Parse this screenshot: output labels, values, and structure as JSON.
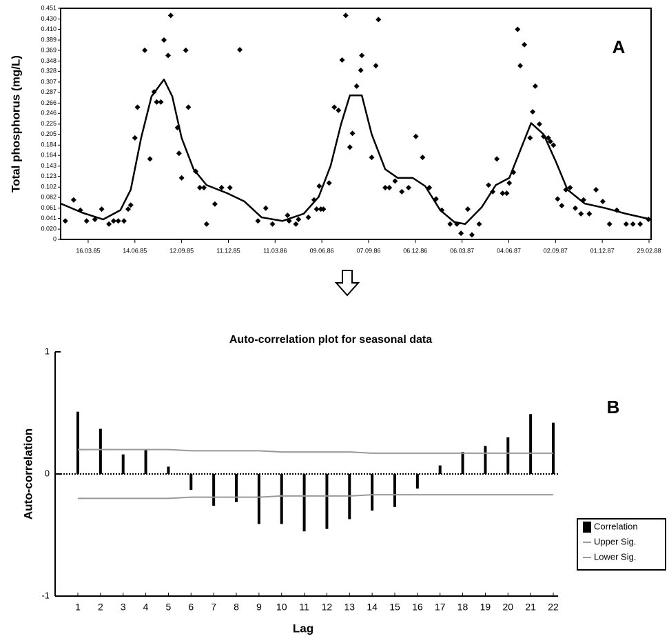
{
  "chart_data": [
    {
      "type": "scatter",
      "ylabel": "Total phosphorus (mg/L)",
      "annotation": "A",
      "ylim": [
        0,
        0.451
      ],
      "yticks": [
        0,
        {
          "value": 0.02,
          "label": "0.020"
        },
        0.041,
        0.061,
        0.082,
        0.102,
        0.123,
        0.143,
        0.164,
        0.184,
        0.205,
        0.225,
        0.246,
        0.266,
        0.287,
        0.307,
        0.328,
        0.348,
        0.369,
        0.389,
        {
          "value": 0.41,
          "label": "0.410"
        },
        {
          "value": 0.43,
          "label": "0.430"
        },
        0.451
      ],
      "xlim": [
        "1985-01-22",
        "1988-03-04"
      ],
      "xticks": [
        {
          "value": "1985-03-16",
          "label": "16.03.85"
        },
        {
          "value": "1985-06-14",
          "label": "14.06.85"
        },
        {
          "value": "1985-09-12",
          "label": "12.09.85"
        },
        {
          "value": "1985-12-11",
          "label": "11.12.85"
        },
        {
          "value": "1986-03-11",
          "label": "11.03.86"
        },
        {
          "value": "1986-06-09",
          "label": "09.06.86"
        },
        {
          "value": "1986-09-07",
          "label": "07.09.86"
        },
        {
          "value": "1986-12-06",
          "label": "06.12.86"
        },
        {
          "value": "1987-03-06",
          "label": "06.03.87"
        },
        {
          "value": "1987-06-04",
          "label": "04.06.87"
        },
        {
          "value": "1987-09-02",
          "label": "02.09.87"
        },
        {
          "value": "1987-12-01",
          "label": "01.12.87"
        },
        {
          "value": "1988-02-29",
          "label": "29.02.88"
        }
      ],
      "series": [
        {
          "color": "#000000",
          "x": [
            "1985-01-31",
            "1985-02-16",
            "1985-03-01",
            "1985-03-13",
            "1985-03-29",
            "1985-04-11",
            "1985-04-25",
            "1985-05-04",
            "1985-05-13",
            "1985-05-24",
            "1985-06-01",
            "1985-06-06",
            "1985-06-14",
            "1985-06-19",
            "1985-07-03",
            "1985-07-13",
            "1985-07-21",
            "1985-07-26",
            "1985-08-03",
            "1985-08-09",
            "1985-08-17",
            "1985-08-22",
            "1985-09-04",
            "1985-09-07",
            "1985-09-12",
            "1985-09-20",
            "1985-09-25",
            "1985-10-09",
            "1985-10-17",
            "1985-10-25",
            "1985-10-30",
            "1985-11-15",
            "1985-11-28",
            "1985-12-14",
            "1986-01-02",
            "1986-02-06",
            "1986-02-21",
            "1986-03-06",
            "1986-04-04",
            "1986-04-07",
            "1986-04-20",
            "1986-04-25",
            "1986-05-14",
            "1986-05-25",
            "1986-05-30",
            "1986-06-04",
            "1986-06-07",
            "1986-06-12",
            "1986-06-23",
            "1986-07-03",
            "1986-07-11",
            "1986-07-18",
            "1986-07-25",
            "1986-08-02",
            "1986-08-07",
            "1986-08-15",
            "1986-08-23",
            "1986-08-25",
            "1986-09-13",
            "1986-09-21",
            "1986-09-26",
            "1986-10-09",
            "1986-10-17",
            "1986-10-28",
            "1986-11-10",
            "1986-11-23",
            "1986-12-07",
            "1986-12-20",
            "1987-01-02",
            "1987-01-15",
            "1987-01-26",
            "1987-02-11",
            "1987-02-24",
            "1987-03-04",
            "1987-03-17",
            "1987-03-25",
            "1987-04-08",
            "1987-04-26",
            "1987-05-04",
            "1987-05-12",
            "1987-05-23",
            "1987-05-31",
            "1987-06-05",
            "1987-06-13",
            "1987-06-21",
            "1987-06-26",
            "1987-07-04",
            "1987-07-15",
            "1987-07-20",
            "1987-07-25",
            "1987-08-02",
            "1987-08-10",
            "1987-08-19",
            "1987-08-23",
            "1987-08-29",
            "1987-09-06",
            "1987-09-14",
            "1987-09-22",
            "1987-09-30",
            "1987-10-10",
            "1987-10-21",
            "1987-10-26",
            "1987-11-06",
            "1987-11-19",
            "1987-12-02",
            "1987-12-15",
            "1987-12-29",
            "1988-01-16",
            "1988-01-29",
            "1988-02-12",
            "1988-02-28"
          ],
          "values": [
            0.036,
            0.077,
            0.057,
            0.036,
            0.039,
            0.059,
            0.03,
            0.036,
            0.036,
            0.036,
            0.059,
            0.067,
            0.198,
            0.258,
            0.369,
            0.157,
            0.288,
            0.268,
            0.268,
            0.389,
            0.359,
            0.437,
            0.218,
            0.168,
            0.12,
            0.369,
            0.258,
            0.133,
            0.101,
            0.101,
            0.03,
            0.069,
            0.101,
            0.101,
            0.37,
            0.036,
            0.061,
            0.03,
            0.047,
            0.036,
            0.03,
            0.039,
            0.043,
            0.077,
            0.059,
            0.104,
            0.059,
            0.059,
            0.11,
            0.258,
            0.252,
            0.35,
            0.437,
            0.18,
            0.207,
            0.299,
            0.33,
            0.359,
            0.16,
            0.339,
            0.429,
            0.101,
            0.101,
            0.114,
            0.093,
            0.101,
            0.201,
            0.16,
            0.101,
            0.079,
            0.057,
            0.03,
            0.03,
            0.012,
            0.059,
            0.009,
            0.03,
            0.106,
            0.093,
            0.157,
            0.09,
            0.09,
            0.11,
            0.131,
            0.41,
            0.339,
            0.38,
            0.198,
            0.249,
            0.299,
            0.225,
            0.201,
            0.198,
            0.191,
            0.184,
            0.079,
            0.066,
            0.097,
            0.101,
            0.061,
            0.05,
            0.077,
            0.05,
            0.097,
            0.074,
            0.03,
            0.057,
            0.03,
            0.03,
            0.03,
            0.039
          ]
        },
        {
          "type": "line",
          "color": "#000000",
          "x": [
            "1985-01-22",
            "1985-03-05",
            "1985-04-14",
            "1985-05-17",
            "1985-06-06",
            "1985-06-26",
            "1985-07-16",
            "1985-08-09",
            "1985-08-25",
            "1985-09-12",
            "1985-10-05",
            "1985-10-30",
            "1985-12-09",
            "1986-01-11",
            "1986-02-13",
            "1986-03-25",
            "1986-05-05",
            "1986-06-03",
            "1986-06-26",
            "1986-07-16",
            "1986-08-02",
            "1986-08-25",
            "1986-09-13",
            "1986-10-09",
            "1986-11-02",
            "1986-12-01",
            "1986-12-25",
            "1987-01-23",
            "1987-02-19",
            "1987-03-12",
            "1987-04-13",
            "1987-05-10",
            "1987-06-05",
            "1987-06-25",
            "1987-07-17",
            "1987-08-10",
            "1987-09-03",
            "1987-09-25",
            "1987-10-28",
            "1987-12-07",
            "1988-01-16",
            "1988-03-04"
          ],
          "values": [
            0.07,
            0.052,
            0.039,
            0.057,
            0.097,
            0.198,
            0.279,
            0.312,
            0.279,
            0.198,
            0.137,
            0.106,
            0.09,
            0.074,
            0.043,
            0.036,
            0.05,
            0.083,
            0.144,
            0.225,
            0.281,
            0.281,
            0.205,
            0.137,
            0.12,
            0.12,
            0.104,
            0.057,
            0.034,
            0.03,
            0.063,
            0.106,
            0.12,
            0.171,
            0.227,
            0.205,
            0.151,
            0.097,
            0.07,
            0.061,
            0.05,
            0.039
          ]
        }
      ]
    },
    {
      "type": "bar",
      "title": "Auto-correlation plot for seasonal data",
      "xlabel": "Lag",
      "ylabel": "Auto-correlation",
      "annotation": "B",
      "categories": [
        "1",
        "2",
        "3",
        "4",
        "5",
        "6",
        "7",
        "8",
        "9",
        "10",
        "11",
        "12",
        "13",
        "14",
        "15",
        "16",
        "17",
        "18",
        "19",
        "20",
        "21",
        "22"
      ],
      "ylim": [
        -1,
        1
      ],
      "yticks": [
        -1,
        0,
        1
      ],
      "series": [
        {
          "name": "Correlation",
          "color": "#000000",
          "values": [
            0.51,
            0.37,
            0.16,
            0.2,
            0.06,
            -0.13,
            -0.26,
            -0.23,
            -0.41,
            -0.41,
            -0.47,
            -0.45,
            -0.37,
            -0.3,
            -0.27,
            -0.12,
            0.07,
            0.18,
            0.23,
            0.3,
            0.49,
            0.42
          ]
        },
        {
          "name": "Upper Sig.",
          "type": "line",
          "color": "#999999",
          "values": [
            0.2,
            0.2,
            0.2,
            0.2,
            0.2,
            0.19,
            0.19,
            0.19,
            0.19,
            0.18,
            0.18,
            0.18,
            0.18,
            0.17,
            0.17,
            0.17,
            0.17,
            0.17,
            0.17,
            0.17,
            0.17,
            0.17
          ]
        },
        {
          "name": "Lower Sig.",
          "type": "line",
          "color": "#999999",
          "values": [
            -0.2,
            -0.2,
            -0.2,
            -0.2,
            -0.2,
            -0.19,
            -0.19,
            -0.19,
            -0.19,
            -0.18,
            -0.18,
            -0.18,
            -0.18,
            -0.17,
            -0.17,
            -0.17,
            -0.17,
            -0.17,
            -0.17,
            -0.17,
            -0.17,
            -0.17
          ]
        }
      ]
    }
  ]
}
